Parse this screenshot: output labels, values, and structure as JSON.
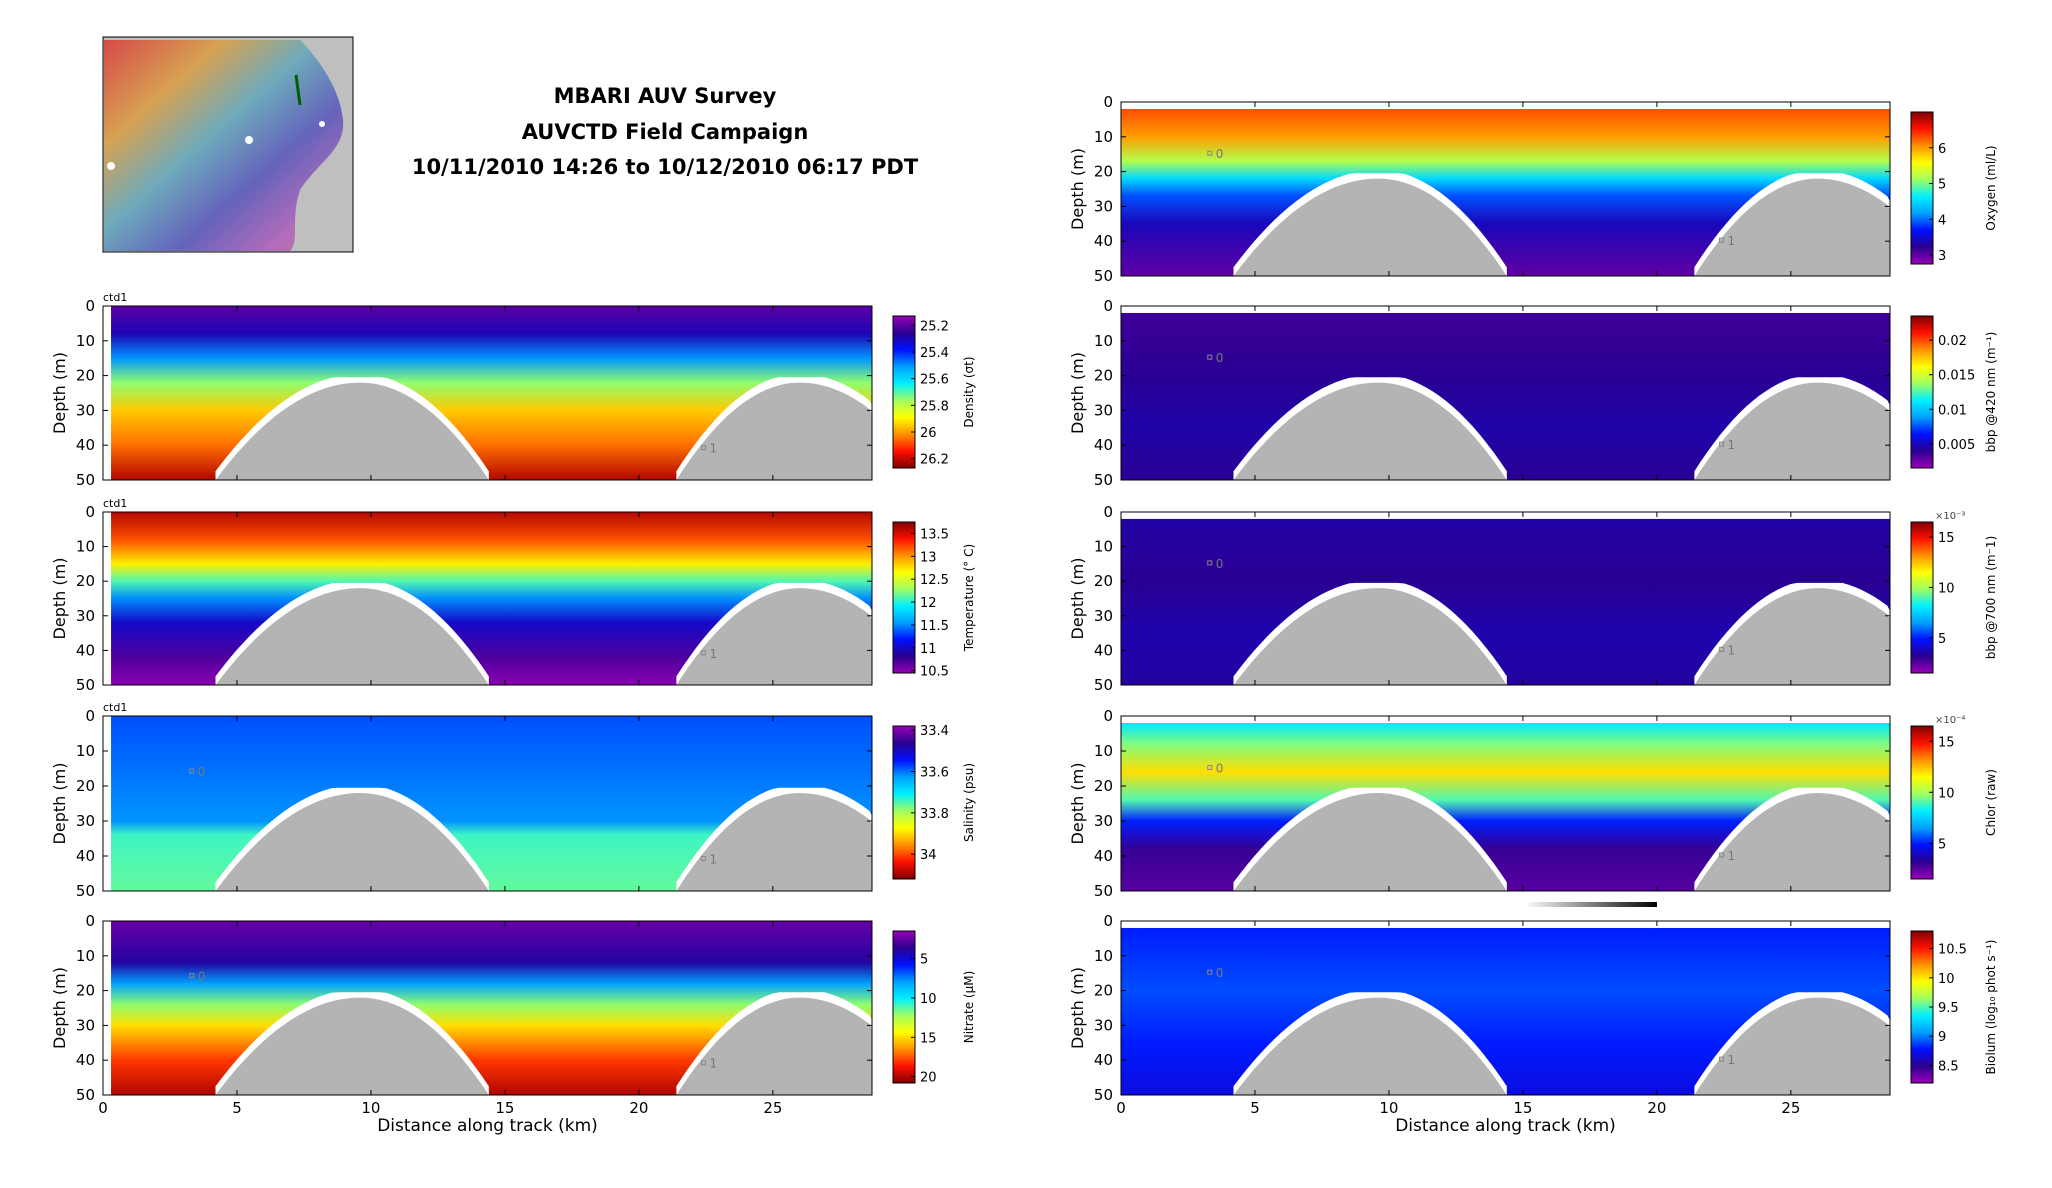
{
  "header": {
    "line1": "MBARI AUV Survey",
    "line2": "AUVCTD Field Campaign",
    "line3": "10/11/2010 14:26 to 10/12/2010 06:17 PDT"
  },
  "colors": {
    "colormap": [
      "#9a00b8",
      "#2a0090",
      "#0010ff",
      "#00a0ff",
      "#00f0ff",
      "#a0ff60",
      "#ffff00",
      "#ff9000",
      "#ff1000",
      "#800000"
    ],
    "seafloor": "#b4b4b4",
    "map_land": "#bfbfbf"
  },
  "chart_data": [
    {
      "type": "heatmap",
      "id": "density",
      "column": "left",
      "row": 1,
      "panel_tag": "ctd1",
      "ylabel": "Depth (m)",
      "xlabel": "",
      "xlim": [
        0,
        28.7
      ],
      "ylim": [
        50,
        0
      ],
      "xticks": [
        0,
        5,
        10,
        15,
        20,
        25
      ],
      "yticks": [
        0,
        10,
        20,
        30,
        40,
        50
      ],
      "show_xticklabels": false,
      "cbar_label": "Density (σt)",
      "cbar_ticks": [
        "25.2",
        "25.4",
        "25.6",
        "25.8",
        "26",
        "26.2"
      ],
      "cbar_tick_values": [
        25.2,
        25.4,
        25.6,
        25.8,
        26,
        26.2
      ],
      "clim": [
        25.13,
        26.27
      ],
      "cbar_reverse": true,
      "cbar_exponent": "",
      "profile": [
        [
          0,
          25.2
        ],
        [
          8,
          25.3
        ],
        [
          15,
          25.5
        ],
        [
          22,
          25.75
        ],
        [
          30,
          25.95
        ],
        [
          40,
          26.05
        ],
        [
          50,
          26.22
        ]
      ],
      "data_start_km": 0.3,
      "data_top_m": 0,
      "markers": [
        {
          "label": "1",
          "x": 22.6,
          "y": 41
        }
      ]
    },
    {
      "type": "heatmap",
      "id": "temperature",
      "column": "left",
      "row": 2,
      "panel_tag": "ctd1",
      "ylabel": "Depth (m)",
      "xlabel": "",
      "xlim": [
        0,
        28.7
      ],
      "ylim": [
        50,
        0
      ],
      "xticks": [
        0,
        5,
        10,
        15,
        20,
        25
      ],
      "yticks": [
        0,
        10,
        20,
        30,
        40,
        50
      ],
      "show_xticklabels": false,
      "cbar_label": "Temperature (° C)",
      "cbar_ticks": [
        "13.5",
        "13",
        "12.5",
        "12",
        "11.5",
        "11",
        "10.5"
      ],
      "cbar_tick_values": [
        13.5,
        13,
        12.5,
        12,
        11.5,
        11,
        10.5
      ],
      "clim": [
        10.45,
        13.75
      ],
      "cbar_reverse": false,
      "cbar_exponent": "",
      "profile": [
        [
          0,
          13.6
        ],
        [
          8,
          13.2
        ],
        [
          15,
          12.7
        ],
        [
          20,
          12.1
        ],
        [
          25,
          11.5
        ],
        [
          32,
          11.0
        ],
        [
          42,
          10.7
        ],
        [
          50,
          10.5
        ]
      ],
      "data_start_km": 0.3,
      "data_top_m": 0,
      "markers": [
        {
          "label": "1",
          "x": 22.6,
          "y": 41
        }
      ]
    },
    {
      "type": "heatmap",
      "id": "salinity",
      "column": "left",
      "row": 3,
      "panel_tag": "ctd1",
      "ylabel": "Depth (m)",
      "xlabel": "",
      "xlim": [
        0,
        28.7
      ],
      "ylim": [
        50,
        0
      ],
      "xticks": [
        0,
        5,
        10,
        15,
        20,
        25
      ],
      "yticks": [
        0,
        10,
        20,
        30,
        40,
        50
      ],
      "show_xticklabels": false,
      "cbar_label": "Salinity (psu)",
      "cbar_ticks": [
        "33.4",
        "33.6",
        "33.8",
        "34"
      ],
      "cbar_tick_values": [
        33.4,
        33.6,
        33.8,
        34
      ],
      "clim": [
        33.38,
        34.12
      ],
      "cbar_reverse": true,
      "cbar_exponent": "",
      "profile": [
        [
          0,
          33.58
        ],
        [
          30,
          33.62
        ],
        [
          34,
          33.74
        ],
        [
          50,
          33.76
        ]
      ],
      "data_start_km": 0.3,
      "data_top_m": 0,
      "markers": [
        {
          "label": "0",
          "x": 3.5,
          "y": 16
        },
        {
          "label": "1",
          "x": 22.6,
          "y": 41
        }
      ]
    },
    {
      "type": "heatmap",
      "id": "nitrate",
      "column": "left",
      "row": 4,
      "panel_tag": "",
      "ylabel": "Depth (m)",
      "xlabel": "Distance along track (km)",
      "xlim": [
        0,
        28.7
      ],
      "ylim": [
        50,
        0
      ],
      "xticks": [
        0,
        5,
        10,
        15,
        20,
        25
      ],
      "yticks": [
        0,
        10,
        20,
        30,
        40,
        50
      ],
      "show_xticklabels": true,
      "cbar_label": "Nitrate (μM)",
      "cbar_ticks": [
        "5",
        "10",
        "15",
        "20"
      ],
      "cbar_tick_values": [
        5,
        10,
        15,
        20
      ],
      "clim": [
        1.5,
        20.8
      ],
      "cbar_reverse": true,
      "cbar_exponent": "",
      "profile": [
        [
          0,
          2.5
        ],
        [
          12,
          4
        ],
        [
          18,
          8
        ],
        [
          24,
          12
        ],
        [
          30,
          15
        ],
        [
          40,
          18
        ],
        [
          50,
          20
        ]
      ],
      "data_start_km": 0.3,
      "data_top_m": 0,
      "markers": [
        {
          "label": "0",
          "x": 3.5,
          "y": 16
        },
        {
          "label": "1",
          "x": 22.6,
          "y": 41
        }
      ]
    },
    {
      "type": "heatmap",
      "id": "oxygen",
      "column": "right",
      "row": 0,
      "panel_tag": "",
      "ylabel": "Depth (m)",
      "xlabel": "",
      "xlim": [
        0,
        28.7
      ],
      "ylim": [
        50,
        0
      ],
      "xticks": [
        0,
        5,
        10,
        15,
        20,
        25
      ],
      "yticks": [
        0,
        10,
        20,
        30,
        40,
        50
      ],
      "show_xticklabels": false,
      "cbar_label": "Oxygen (ml/L)",
      "cbar_ticks": [
        "6",
        "5",
        "4",
        "3"
      ],
      "cbar_tick_values": [
        6,
        5,
        4,
        3
      ],
      "clim": [
        2.75,
        7.0
      ],
      "cbar_reverse": false,
      "cbar_exponent": "",
      "profile": [
        [
          2,
          6.3
        ],
        [
          10,
          6.0
        ],
        [
          17,
          5.2
        ],
        [
          22,
          4.5
        ],
        [
          27,
          3.9
        ],
        [
          35,
          3.4
        ],
        [
          50,
          3.0
        ]
      ],
      "data_start_km": 0,
      "data_top_m": 2,
      "markers": [
        {
          "label": "0",
          "x": 3.5,
          "y": 15
        },
        {
          "label": "1",
          "x": 22.6,
          "y": 40
        }
      ]
    },
    {
      "type": "heatmap",
      "id": "bbp420",
      "column": "right",
      "row": 1,
      "panel_tag": "",
      "ylabel": "Depth (m)",
      "xlabel": "",
      "xlim": [
        0,
        28.7
      ],
      "ylim": [
        50,
        0
      ],
      "xticks": [
        0,
        5,
        10,
        15,
        20,
        25
      ],
      "yticks": [
        0,
        10,
        20,
        30,
        40,
        50
      ],
      "show_xticklabels": false,
      "cbar_label": "bbp @420 nm (m⁻¹)",
      "cbar_ticks": [
        "0.02",
        "0.015",
        "0.01",
        "0.005"
      ],
      "cbar_tick_values": [
        0.02,
        0.015,
        0.01,
        0.005
      ],
      "clim": [
        0.0015,
        0.0235
      ],
      "cbar_reverse": false,
      "cbar_exponent": "",
      "profile": [
        [
          2,
          0.0035
        ],
        [
          20,
          0.004
        ],
        [
          35,
          0.0045
        ],
        [
          50,
          0.004
        ]
      ],
      "data_start_km": 0,
      "data_top_m": 2,
      "markers": [
        {
          "label": "0",
          "x": 3.5,
          "y": 15
        },
        {
          "label": "1",
          "x": 22.6,
          "y": 40
        }
      ]
    },
    {
      "type": "heatmap",
      "id": "bbp700",
      "column": "right",
      "row": 2,
      "panel_tag": "",
      "ylabel": "Depth (m)",
      "xlabel": "",
      "xlim": [
        0,
        28.7
      ],
      "ylim": [
        50,
        0
      ],
      "xticks": [
        0,
        5,
        10,
        15,
        20,
        25
      ],
      "yticks": [
        0,
        10,
        20,
        30,
        40,
        50
      ],
      "show_xticklabels": false,
      "cbar_label": "bbp @700 nm (m⁻1)",
      "cbar_ticks": [
        "15",
        "10",
        "5"
      ],
      "cbar_tick_values": [
        15,
        10,
        5
      ],
      "clim": [
        1.5,
        16.5
      ],
      "cbar_reverse": false,
      "cbar_exponent": "×10⁻³",
      "profile": [
        [
          2,
          3.5
        ],
        [
          20,
          3.2
        ],
        [
          35,
          3.6
        ],
        [
          50,
          3.4
        ]
      ],
      "data_start_km": 0,
      "data_top_m": 2,
      "markers": [
        {
          "label": "0",
          "x": 3.5,
          "y": 15
        },
        {
          "label": "1",
          "x": 22.6,
          "y": 40
        }
      ]
    },
    {
      "type": "heatmap",
      "id": "chlor",
      "column": "right",
      "row": 3,
      "panel_tag": "",
      "ylabel": "Depth (m)",
      "xlabel": "",
      "xlim": [
        0,
        28.7
      ],
      "ylim": [
        50,
        0
      ],
      "xticks": [
        0,
        5,
        10,
        15,
        20,
        25
      ],
      "yticks": [
        0,
        10,
        20,
        30,
        40,
        50
      ],
      "show_xticklabels": false,
      "cbar_label": "Chlor (raw)",
      "cbar_ticks": [
        "15",
        "10",
        "5"
      ],
      "cbar_tick_values": [
        15,
        10,
        5
      ],
      "clim": [
        1.5,
        16.5
      ],
      "cbar_reverse": false,
      "cbar_exponent": "×10⁻⁴",
      "profile": [
        [
          2,
          8
        ],
        [
          8,
          9.5
        ],
        [
          16,
          12
        ],
        [
          24,
          9
        ],
        [
          30,
          5
        ],
        [
          38,
          3
        ],
        [
          50,
          2.5
        ]
      ],
      "data_start_km": 0,
      "data_top_m": 2,
      "markers": [
        {
          "label": "0",
          "x": 3.5,
          "y": 15
        },
        {
          "label": "1",
          "x": 22.6,
          "y": 40
        }
      ]
    },
    {
      "type": "heatmap",
      "id": "biolum",
      "column": "right",
      "row": 4,
      "panel_tag": "",
      "ylabel": "Depth (m)",
      "xlabel": "Distance along track (km)",
      "xlim": [
        0,
        28.7
      ],
      "ylim": [
        50,
        0
      ],
      "xticks": [
        0,
        5,
        10,
        15,
        20,
        25
      ],
      "yticks": [
        0,
        10,
        20,
        30,
        40,
        50
      ],
      "show_xticklabels": true,
      "cbar_label": "Biolum (log₁₀ phot s⁻¹)",
      "cbar_ticks": [
        "10.5",
        "10",
        "9.5",
        "9",
        "8.5"
      ],
      "cbar_tick_values": [
        10.5,
        10,
        9.5,
        9,
        8.5
      ],
      "clim": [
        8.2,
        10.8
      ],
      "cbar_reverse": false,
      "cbar_exponent": "",
      "profile": [
        [
          2,
          8.8
        ],
        [
          20,
          8.9
        ],
        [
          35,
          8.8
        ],
        [
          50,
          8.7
        ]
      ],
      "data_start_km": 0,
      "data_top_m": 2,
      "markers": [
        {
          "label": "0",
          "x": 3.5,
          "y": 15
        },
        {
          "label": "1",
          "x": 22.6,
          "y": 40
        }
      ]
    }
  ],
  "bathymetry": {
    "hills": [
      {
        "start_km": 4.2,
        "peak_km": 9.6,
        "end_km": 14.4,
        "peak_depth_m": 22
      },
      {
        "start_km": 21.4,
        "peak_km": 26.0,
        "end_km": 31.0,
        "peak_depth_m": 22
      }
    ]
  }
}
